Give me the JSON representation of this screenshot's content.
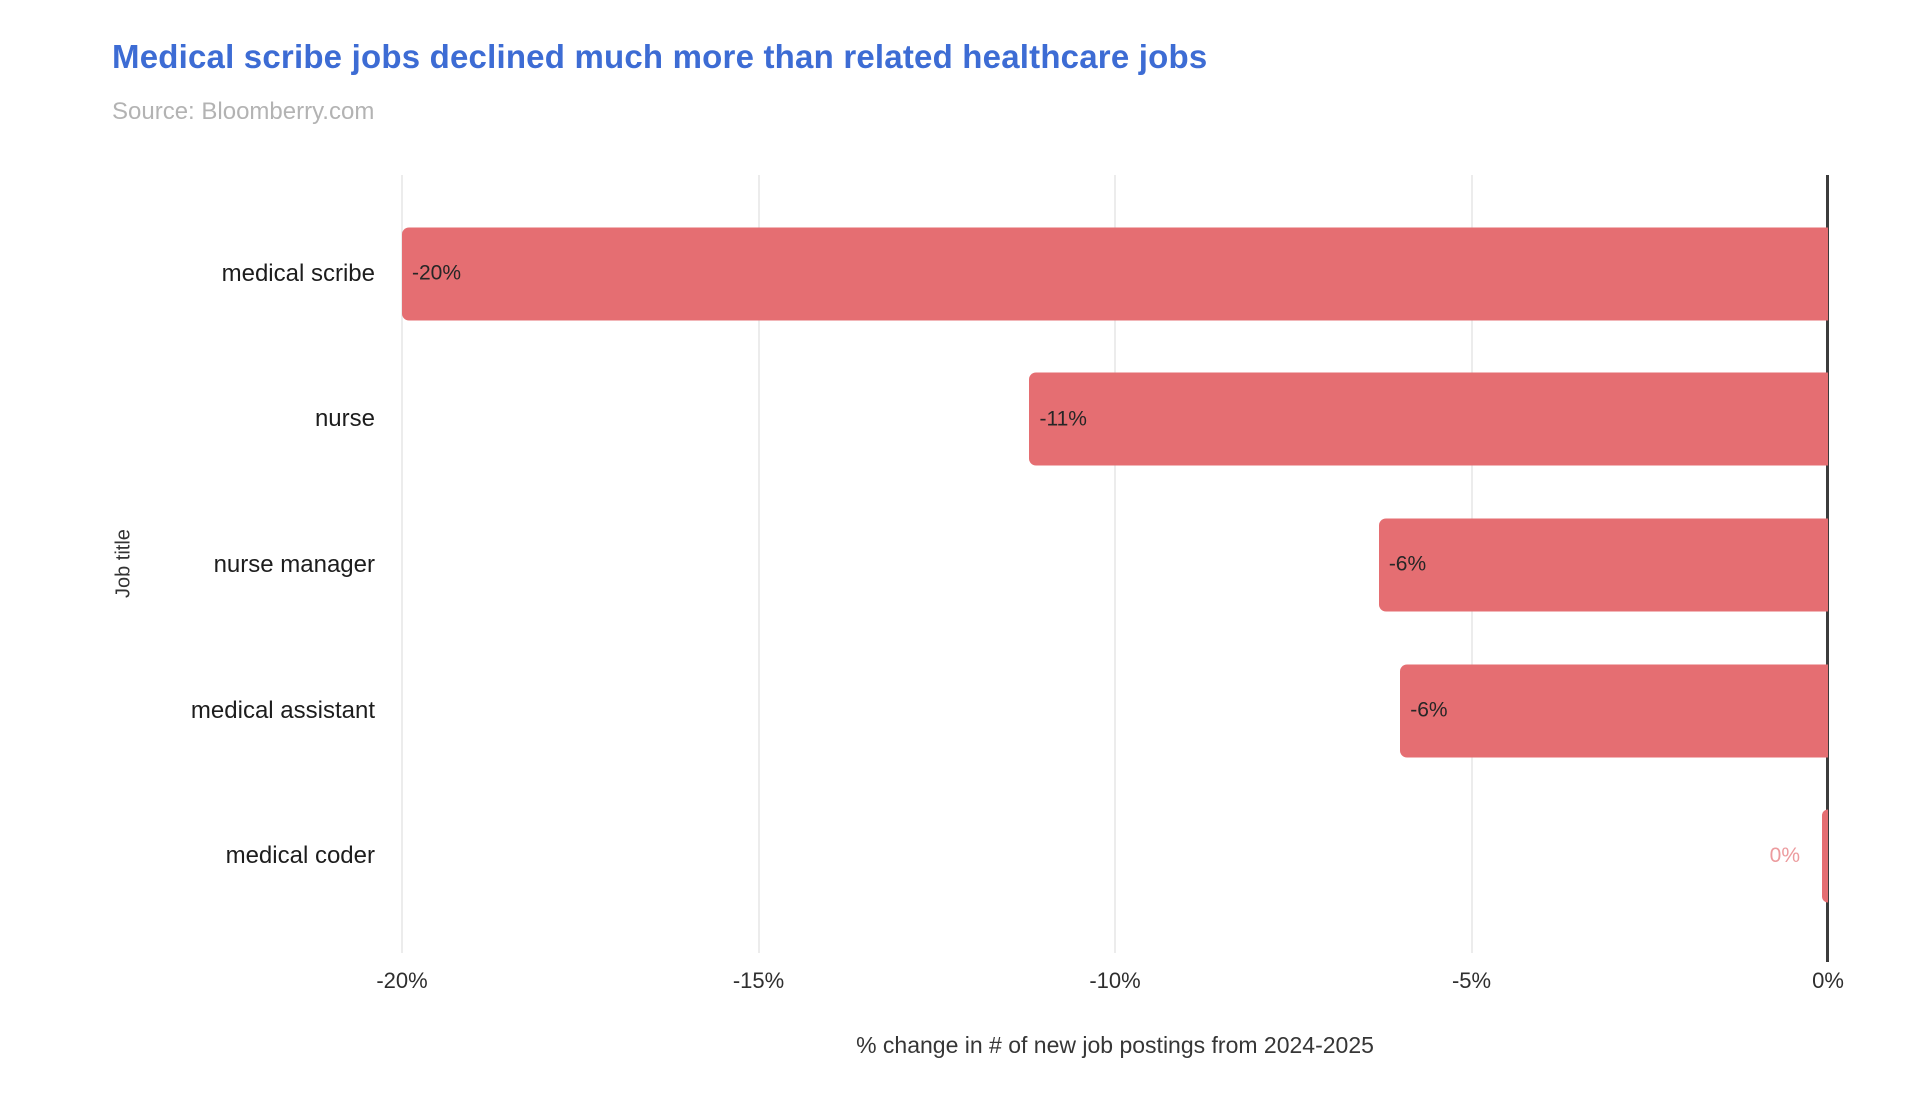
{
  "header": {
    "title": "Medical scribe jobs declined much more than related healthcare jobs",
    "source": "Source: Bloomberry.com",
    "title_color": "#3d6cd4",
    "source_color": "#b3b3b3"
  },
  "chart_data": {
    "type": "bar",
    "orientation": "horizontal",
    "title": "Medical scribe jobs declined much more than related healthcare jobs",
    "subtitle": "Source: Bloomberry.com",
    "categories": [
      "medical scribe",
      "nurse",
      "nurse manager",
      "medical assistant",
      "medical coder"
    ],
    "series": [
      {
        "name": "% change in new job postings",
        "values": [
          -20,
          -11,
          -6,
          -6,
          0
        ],
        "plot_values": [
          -20,
          -11.2,
          -6.3,
          -6.0,
          -0.08
        ],
        "data_labels": [
          "-20%",
          "-11%",
          "-6%",
          "-6%",
          "0%"
        ]
      }
    ],
    "xlabel": "% change in # of new job postings from 2024-2025",
    "ylabel": "Job title",
    "xlim": [
      -20,
      0
    ],
    "xticks": [
      {
        "label": "-20%",
        "value": -20
      },
      {
        "label": "-15%",
        "value": -15
      },
      {
        "label": "-10%",
        "value": -10
      },
      {
        "label": "-5%",
        "value": -5
      },
      {
        "label": "0%",
        "value": 0
      }
    ],
    "grid": "vertical-gridlines-on",
    "legend": "none",
    "colors": {
      "bar": "#e56e72",
      "outside_label": "#ec9b9e",
      "inside_label": "#262626",
      "gridline": "#d9d9d9",
      "zero_line": "#3c3c3c"
    }
  }
}
